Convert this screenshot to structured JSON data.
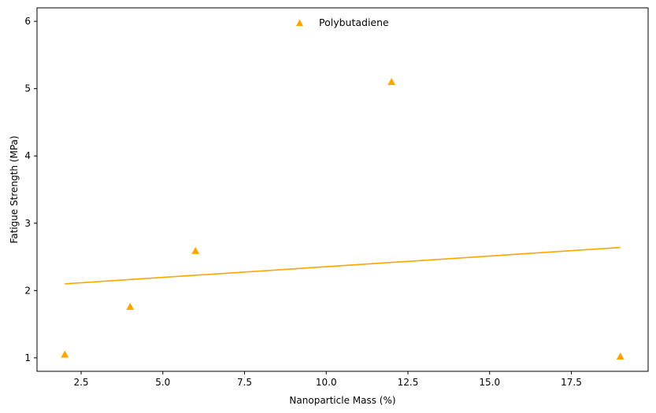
{
  "chart_data": {
    "type": "scatter",
    "title": "",
    "xlabel": "Nanoparticle Mass (%)",
    "ylabel": "Fatigue Strength (MPa)",
    "xlim": [
      1.15,
      19.85
    ],
    "ylim": [
      0.8,
      6.2
    ],
    "xticks": [
      2.5,
      5.0,
      7.5,
      10.0,
      12.5,
      15.0,
      17.5
    ],
    "xtick_labels": [
      "2.5",
      "5.0",
      "7.5",
      "10.0",
      "12.5",
      "15.0",
      "17.5"
    ],
    "yticks": [
      1,
      2,
      3,
      4,
      5,
      6
    ],
    "ytick_labels": [
      "1",
      "2",
      "3",
      "4",
      "5",
      "6"
    ],
    "grid": false,
    "legend": {
      "position": "top-center",
      "entries": [
        "Polybutadiene"
      ]
    },
    "series": [
      {
        "name": "Polybutadiene",
        "marker": "triangle",
        "color": "#FFA500",
        "x": [
          2,
          4,
          6,
          12,
          19
        ],
        "y": [
          1.05,
          1.76,
          2.59,
          5.1,
          1.02
        ]
      }
    ],
    "trendline": {
      "color": "#FFA500",
      "x": [
        2,
        19
      ],
      "y": [
        2.1,
        2.64
      ]
    }
  }
}
